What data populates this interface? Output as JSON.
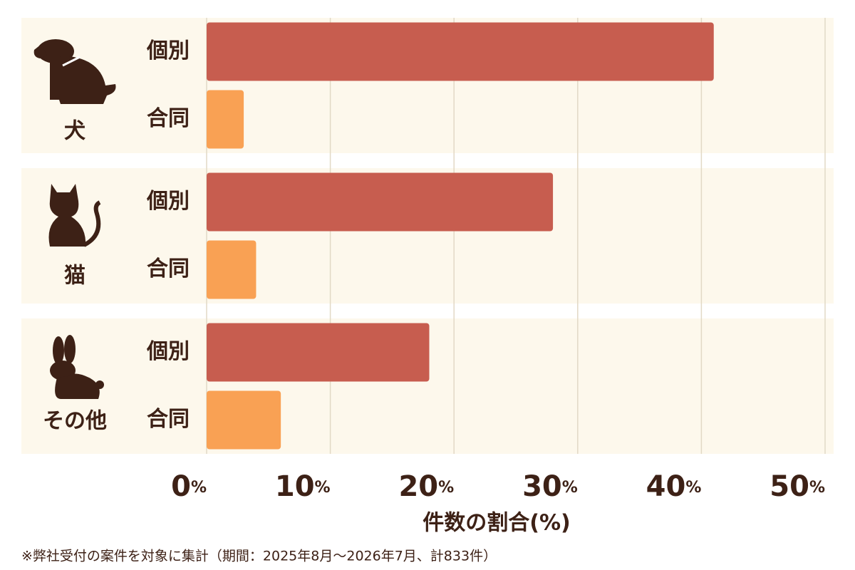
{
  "chart_data": {
    "type": "bar",
    "orientation": "horizontal",
    "categories": [
      "犬",
      "猫",
      "その他"
    ],
    "series": [
      {
        "name": "個別",
        "color": "#c75d4f",
        "values": [
          41,
          28,
          18
        ]
      },
      {
        "name": "合同",
        "color": "#f9a154",
        "values": [
          3,
          4,
          6
        ]
      }
    ],
    "xlim": [
      0,
      50
    ],
    "xticks": [
      {
        "value": 0,
        "label": "0%"
      },
      {
        "value": 10,
        "label": "10%"
      },
      {
        "value": 20,
        "label": "20%"
      },
      {
        "value": 30,
        "label": "30%"
      },
      {
        "value": 40,
        "label": "40%"
      },
      {
        "value": 50,
        "label": "50%"
      }
    ],
    "xlabel": "件数の割合(%)",
    "grid": true,
    "footnote": "※弊社受付の案件を対象に集計（期間：2025年8月～2026年7月、計833件）"
  }
}
